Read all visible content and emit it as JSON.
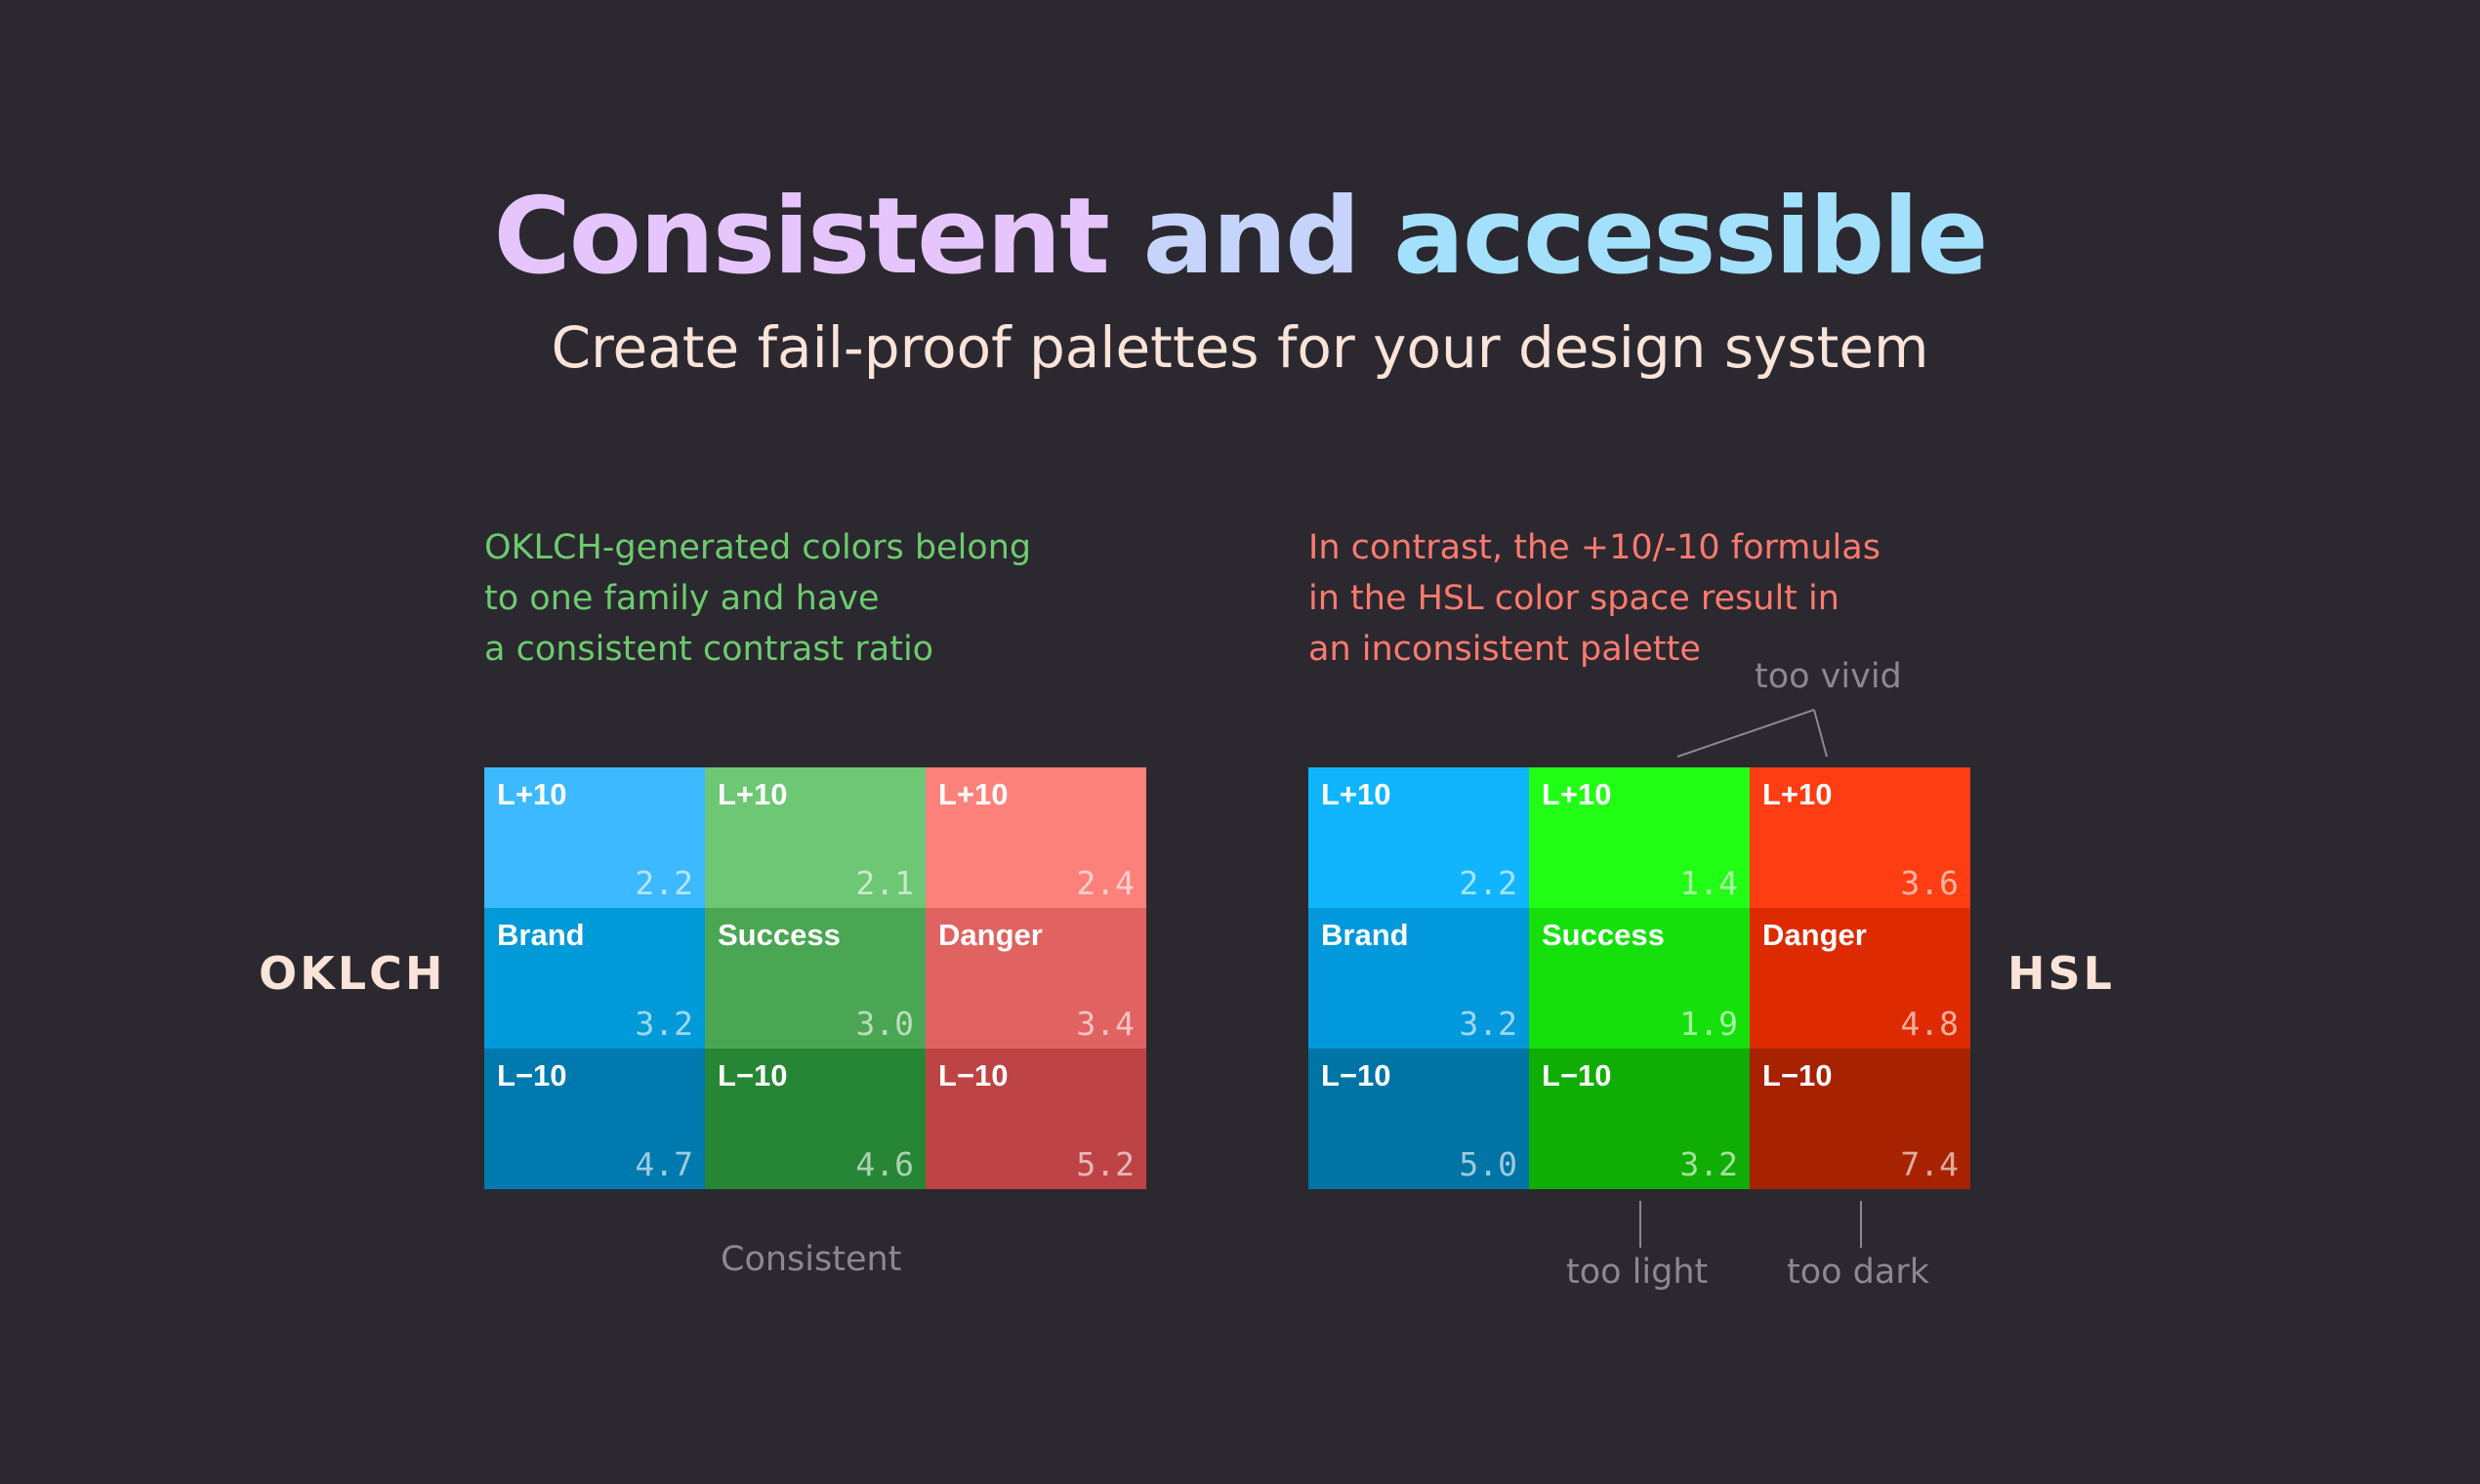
{
  "header": {
    "title_words": [
      "Consistent",
      "and",
      "accessible"
    ],
    "subtitle": "Create fail-proof palettes for your design system"
  },
  "left": {
    "label": "OKLCH",
    "description": [
      "OKLCH-generated colors belong",
      "to one family and have",
      "a consistent contrast ratio"
    ],
    "caption": "Consistent",
    "rows": [
      [
        {
          "label": "L+10",
          "value": "2.2",
          "color": "#3db9ff"
        },
        {
          "label": "L+10",
          "value": "2.1",
          "color": "#6dc774"
        },
        {
          "label": "L+10",
          "value": "2.4",
          "color": "#fd817b"
        }
      ],
      [
        {
          "label": "Brand",
          "value": "3.2",
          "color": "#009ad9"
        },
        {
          "label": "Success",
          "value": "3.0",
          "color": "#4aa653"
        },
        {
          "label": "Danger",
          "value": "3.4",
          "color": "#e06261"
        }
      ],
      [
        {
          "label": "L−10",
          "value": "4.7",
          "color": "#0079af"
        },
        {
          "label": "L−10",
          "value": "4.6",
          "color": "#278636"
        },
        {
          "label": "L−10",
          "value": "5.2",
          "color": "#be4344"
        }
      ]
    ]
  },
  "right": {
    "label": "HSL",
    "description": [
      "In contrast, the +10/-10 formulas",
      "in the HSL color space result in",
      "an inconsistent palette"
    ],
    "notes": {
      "vivid": "too vivid",
      "light": "too light",
      "dark": "too dark"
    },
    "rows": [
      [
        {
          "label": "L+10",
          "value": "2.2",
          "color": "#10b5fd"
        },
        {
          "label": "L+10",
          "value": "1.4",
          "color": "#22fd16"
        },
        {
          "label": "L+10",
          "value": "3.6",
          "color": "#fe3d12"
        }
      ],
      [
        {
          "label": "Brand",
          "value": "3.2",
          "color": "#0199dc"
        },
        {
          "label": "Success",
          "value": "1.9",
          "color": "#15e00c"
        },
        {
          "label": "Danger",
          "value": "4.8",
          "color": "#de2a00"
        }
      ],
      [
        {
          "label": "L−10",
          "value": "5.0",
          "color": "#0074a5"
        },
        {
          "label": "L−10",
          "value": "3.2",
          "color": "#10ad04"
        },
        {
          "label": "L−10",
          "value": "7.4",
          "color": "#a72200"
        }
      ]
    ]
  }
}
